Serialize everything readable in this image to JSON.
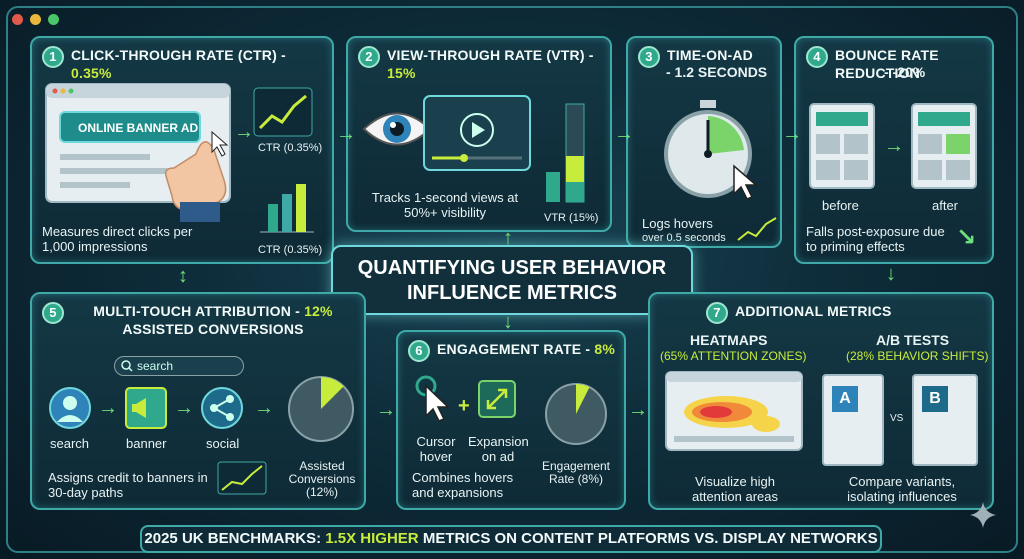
{
  "title": {
    "line1": "QUANTIFYING USER BEHAVIOR",
    "line2": "INFLUENCE METRICS"
  },
  "panels": {
    "ctr": {
      "num": "1",
      "title": "CLICK-THROUGH RATE (CTR) - ",
      "value": "0.35%",
      "banner_ad": "ONLINE BANNER AD",
      "ctr_label_1": "CTR (0.35%)",
      "ctr_label_2": "CTR (0.35%)",
      "caption": "Measures direct clicks per 1,000 impressions"
    },
    "vtr": {
      "num": "2",
      "title": "VIEW-THROUGH RATE (VTR) - ",
      "value": "15%",
      "caption": "Tracks 1-second views at 50%+ visibility",
      "vtr_label": "VTR (15%)"
    },
    "time": {
      "num": "3",
      "title": "TIME-ON-AD",
      "value": "- 1.2 SECONDS",
      "caption": "Logs hovers",
      "caption2": "over 0.5 seconds"
    },
    "bounce": {
      "num": "4",
      "title": "BOUNCE RATE REDUCTION",
      "value": "- -20%",
      "before": "before",
      "after": "after",
      "caption": "Falls post-exposure due to priming effects"
    },
    "mta": {
      "num": "5",
      "title": "MULTI-TOUCH ATTRIBUTION - ",
      "value": "12%",
      "title2": "ASSISTED CONVERSIONS",
      "search_placeholder": "search",
      "steps": [
        "search",
        "banner",
        "social"
      ],
      "caption": "Assigns credit to banners in 30-day paths",
      "assisted": "Assisted Conversions (12%)"
    },
    "engagement": {
      "num": "6",
      "title": "ENGAGEMENT RATE - ",
      "value": "8%",
      "cursor": "Cursor hover",
      "expansion": "Expansion on ad",
      "caption": "Combines hovers and expansions",
      "rate": "Engagement Rate (8%)"
    },
    "additional": {
      "num": "7",
      "title": "ADDITIONAL METRICS",
      "heatmaps": "HEATMAPS",
      "heatmaps_sub": "(65% ATTENTION ZONES)",
      "heat_caption": "Visualize high attention areas",
      "ab": "A/B TESTS",
      "ab_sub": "(28% BEHAVIOR SHIFTS)",
      "ab_caption": "Compare variants, isolating influences",
      "a": "A",
      "b": "B",
      "vs": "VS"
    }
  },
  "benchmark": {
    "pre": "2025 UK BENCHMARKS: ",
    "hl": "1.5X HIGHER",
    "post": " METRICS ON CONTENT PLATFORMS VS. DISPLAY NETWORKS"
  },
  "colors": {
    "accent": "#c8ec3c",
    "teal": "#3ea9a6",
    "green": "#6ee07a"
  }
}
